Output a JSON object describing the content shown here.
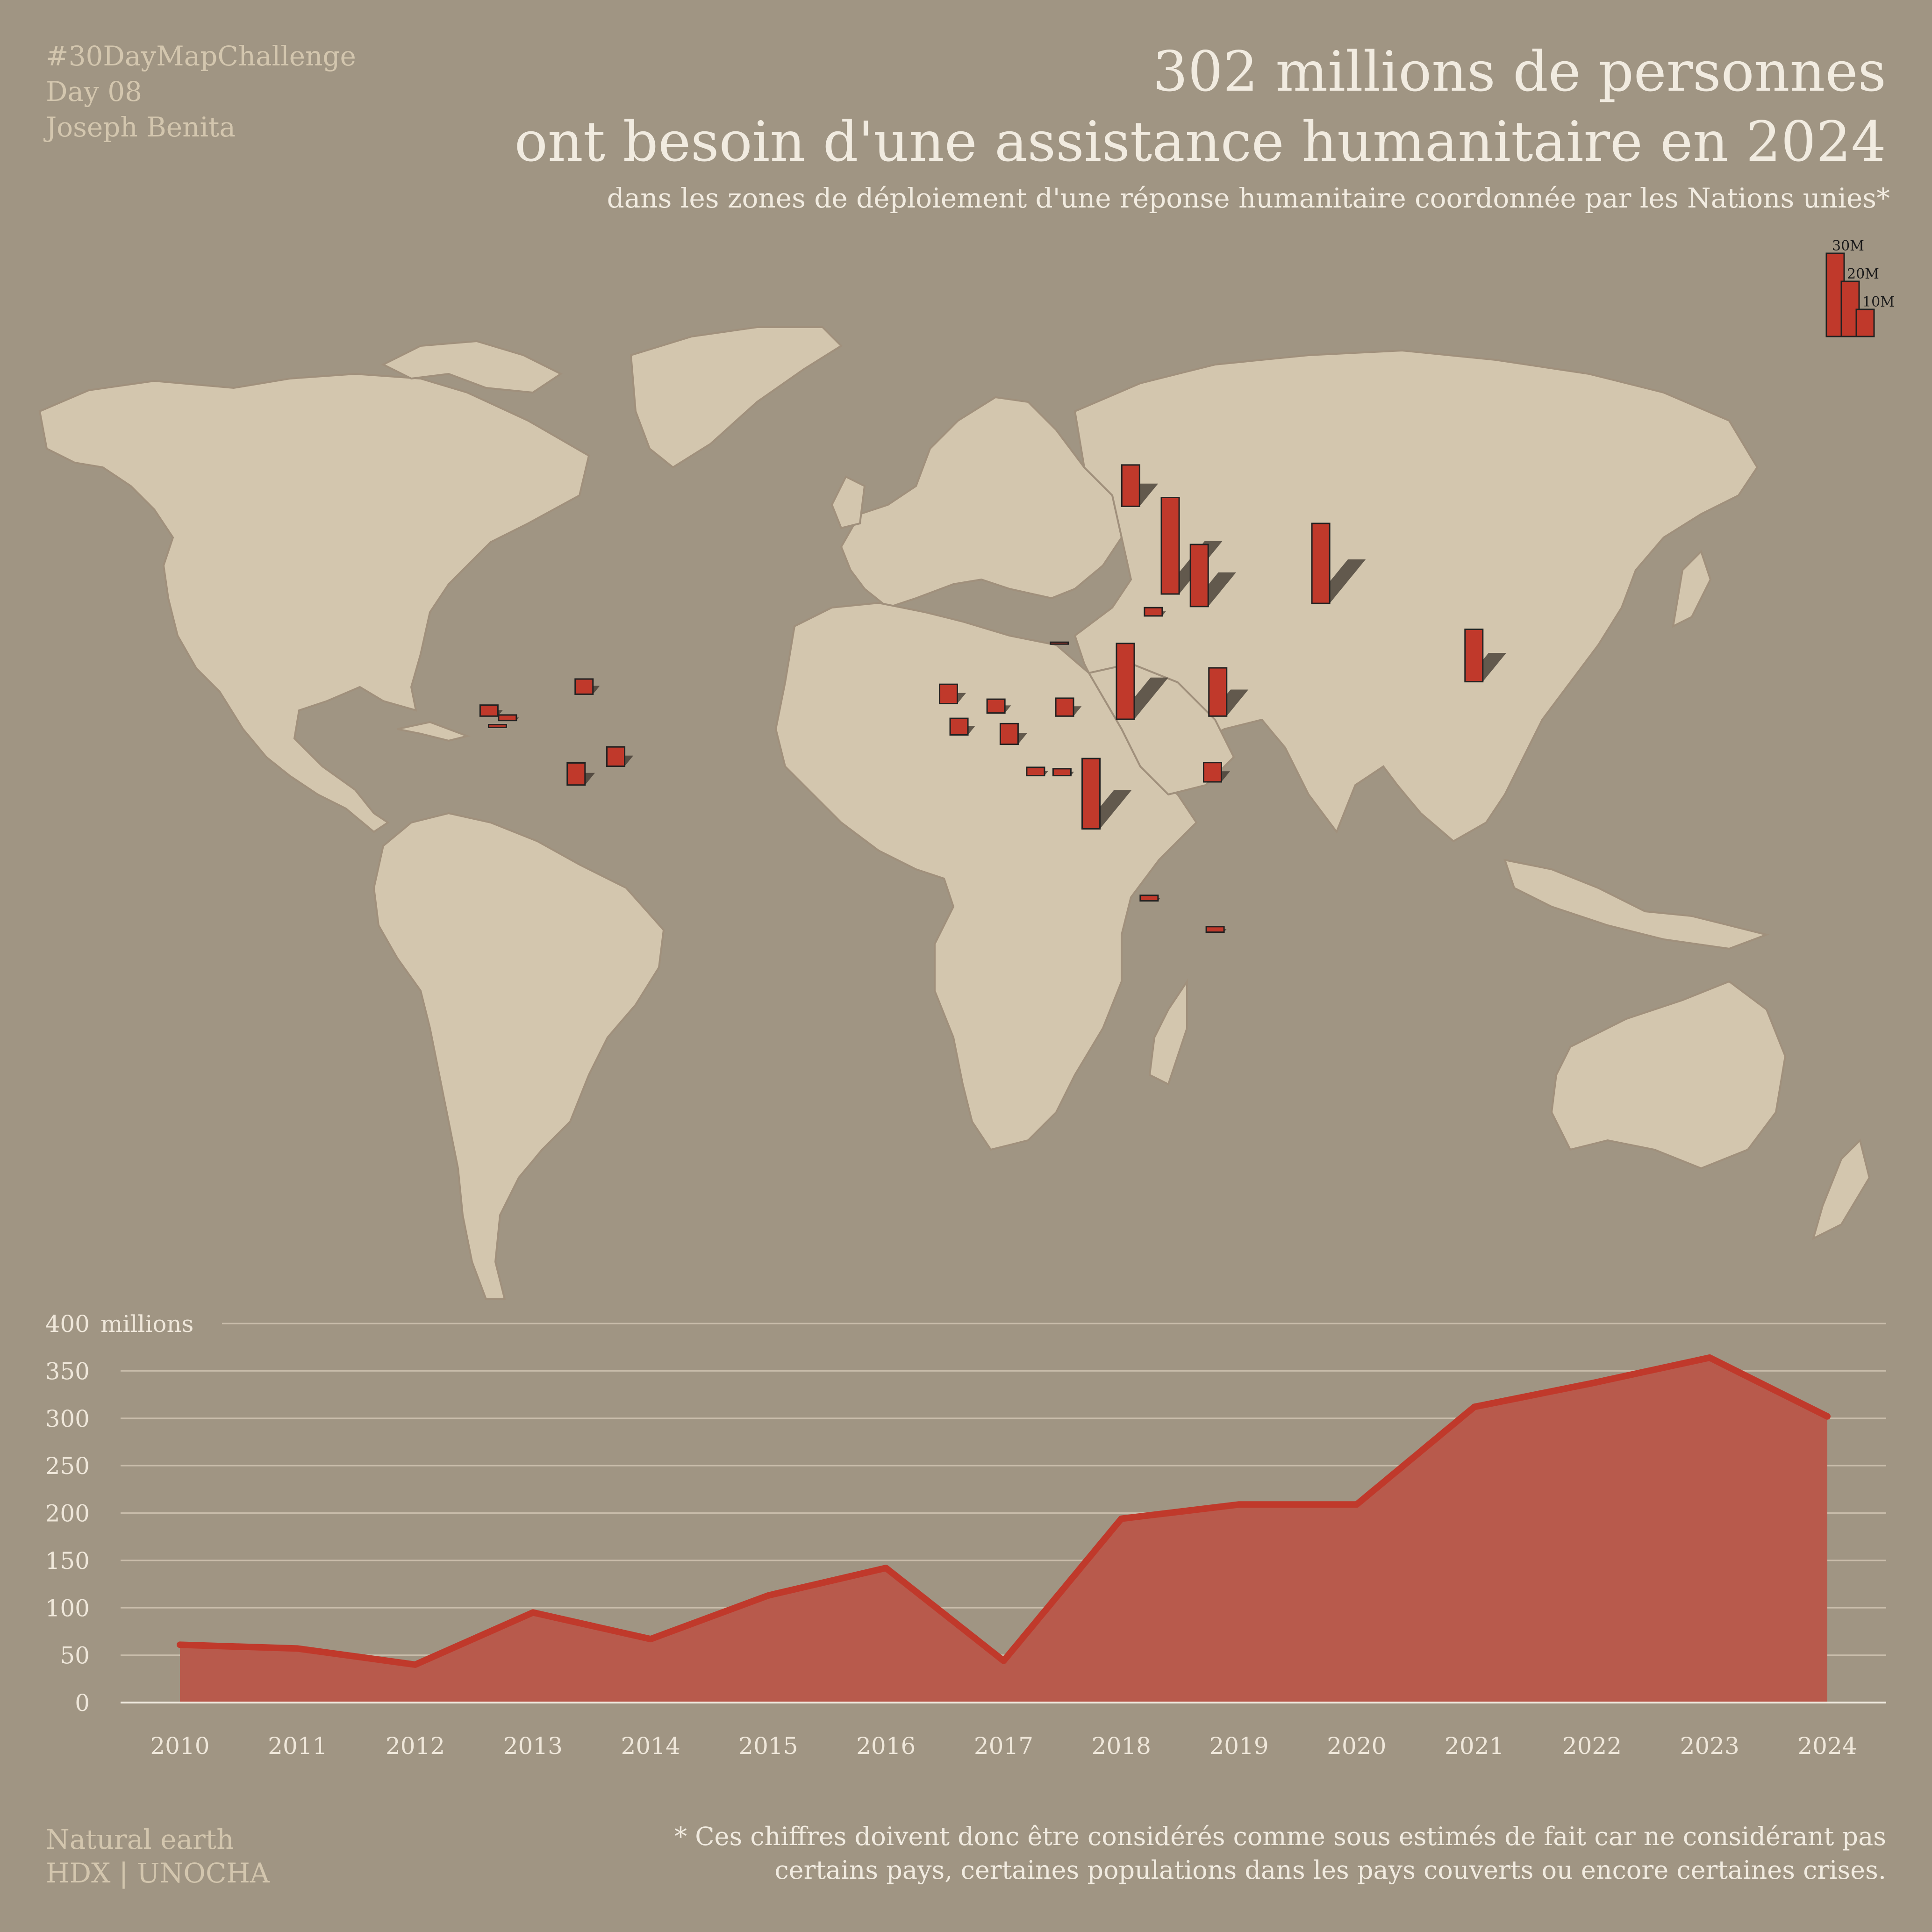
{
  "credit": [
    "#30DayMapChallenge",
    "Day 08",
    "Joseph Benita"
  ],
  "title_line1": "302 millions de personnes",
  "title_line2": "ont besoin d'une assistance humanitaire en 2024",
  "subtitle": "dans les zones de déploiement d'une réponse humanitaire coordonnée par les Nations unies*",
  "legend": {
    "labels": [
      "30M",
      "20M",
      "10M"
    ]
  },
  "sources": [
    "Natural earth",
    "HDX | UNOCHA"
  ],
  "footnote": [
    "* Ces chiffres doivent donc être considérés comme sous estimés de fait car ne considérant pas",
    "certains pays, certaines populations dans les pays couverts ou encore certaines crises."
  ],
  "colors": {
    "background": "#a09583",
    "land": "#d3c6ae",
    "bar": "#c0392b",
    "area": "#b85a4c"
  },
  "chart_data": [
    {
      "type": "map-bars",
      "description_unit": "people in need (millions)",
      "points": [
        {
          "lon": -72.5,
          "lat": 19.0,
          "value": 5.5
        },
        {
          "lon": -90.5,
          "lat": 15.5,
          "value": 4.0
        },
        {
          "lon": -87.0,
          "lat": 14.8,
          "value": 2.0
        },
        {
          "lon": -88.9,
          "lat": 13.7,
          "value": 1.0
        },
        {
          "lon": -74.0,
          "lat": 4.5,
          "value": 8.0
        },
        {
          "lon": -66.5,
          "lat": 7.5,
          "value": 7.0
        },
        {
          "lon": 31.0,
          "lat": 49.0,
          "value": 15.0
        },
        {
          "lon": 38.5,
          "lat": 35.0,
          "value": 35.0
        },
        {
          "lon": 44.0,
          "lat": 33.0,
          "value": 22.5
        },
        {
          "lon": 67.0,
          "lat": 33.5,
          "value": 29.0
        },
        {
          "lon": 35.3,
          "lat": 31.5,
          "value": 3.0
        },
        {
          "lon": 96.0,
          "lat": 21.0,
          "value": 19.0
        },
        {
          "lon": 30.0,
          "lat": 15.0,
          "value": 27.5
        },
        {
          "lon": 47.5,
          "lat": 15.5,
          "value": 17.5
        },
        {
          "lon": 46.5,
          "lat": 5.0,
          "value": 7.0
        },
        {
          "lon": 18.0,
          "lat": 6.0,
          "value": 2.5
        },
        {
          "lon": 23.5,
          "lat": -2.5,
          "value": 25.5
        },
        {
          "lon": 13.0,
          "lat": 6.0,
          "value": 3.0
        },
        {
          "lon": 18.5,
          "lat": 15.5,
          "value": 6.5
        },
        {
          "lon": 8.0,
          "lat": 11.0,
          "value": 7.5
        },
        {
          "lon": 5.5,
          "lat": 16.0,
          "value": 5.0
        },
        {
          "lon": -3.5,
          "lat": 17.5,
          "value": 7.0
        },
        {
          "lon": -1.5,
          "lat": 12.5,
          "value": 6.0
        },
        {
          "lon": 34.5,
          "lat": -14.0,
          "value": 2.0
        },
        {
          "lon": 47.0,
          "lat": -19.0,
          "value": 2.0
        },
        {
          "lon": 17.5,
          "lat": 27.0,
          "value": 0.5
        }
      ]
    },
    {
      "type": "area",
      "x": [
        "2010",
        "2011",
        "2012",
        "2013",
        "2014",
        "2015",
        "2016",
        "2017",
        "2018",
        "2019",
        "2020",
        "2021",
        "2022",
        "2023",
        "2024"
      ],
      "values": [
        61,
        57,
        40,
        95,
        67,
        113,
        142,
        44,
        194,
        209,
        209,
        312,
        337,
        364,
        302
      ],
      "yticks": [
        0,
        50,
        100,
        150,
        200,
        250,
        300,
        350,
        400
      ],
      "ylabel": "millions",
      "ylim": [
        0,
        400
      ],
      "grid": true
    }
  ]
}
